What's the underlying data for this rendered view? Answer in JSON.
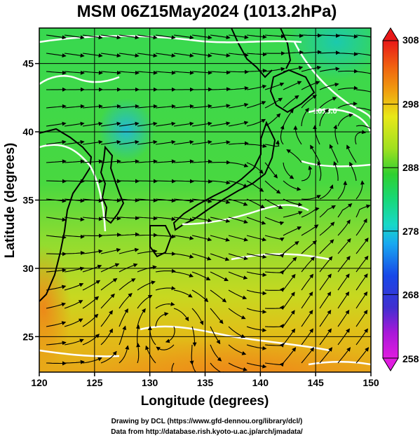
{
  "title": "MSM 06Z15May2024 (1013.2hPa)",
  "map": {
    "xlabel": "Longitude (degrees)",
    "ylabel": "Latitude  (degrees)",
    "xlim": [
      120,
      150
    ],
    "ylim": [
      22.4,
      47.6
    ],
    "xticks": [
      "120",
      "125",
      "130",
      "135",
      "140",
      "145",
      "150"
    ],
    "yticks": [
      "25",
      "30",
      "35",
      "40",
      "45"
    ],
    "grid": true,
    "contour_label": "1016.0"
  },
  "colorbar": {
    "min": 258,
    "max": 308,
    "tick_labels": [
      "308",
      "298",
      "288",
      "278",
      "268",
      "258"
    ],
    "colors": [
      "#e01ce0",
      "#a818d8",
      "#4030d0",
      "#1848e8",
      "#18a8f0",
      "#18d8c8",
      "#18d878",
      "#30d030",
      "#a0e020",
      "#e8e818",
      "#f0a010",
      "#f06010",
      "#e81818"
    ]
  },
  "credits": {
    "line1": "Drawing by DCL (https://www.gfd-dennou.org/library/dcl/)",
    "line2": "Data from http://database.rish.kyoto-u.ac.jp/arch/jmadata/"
  }
}
